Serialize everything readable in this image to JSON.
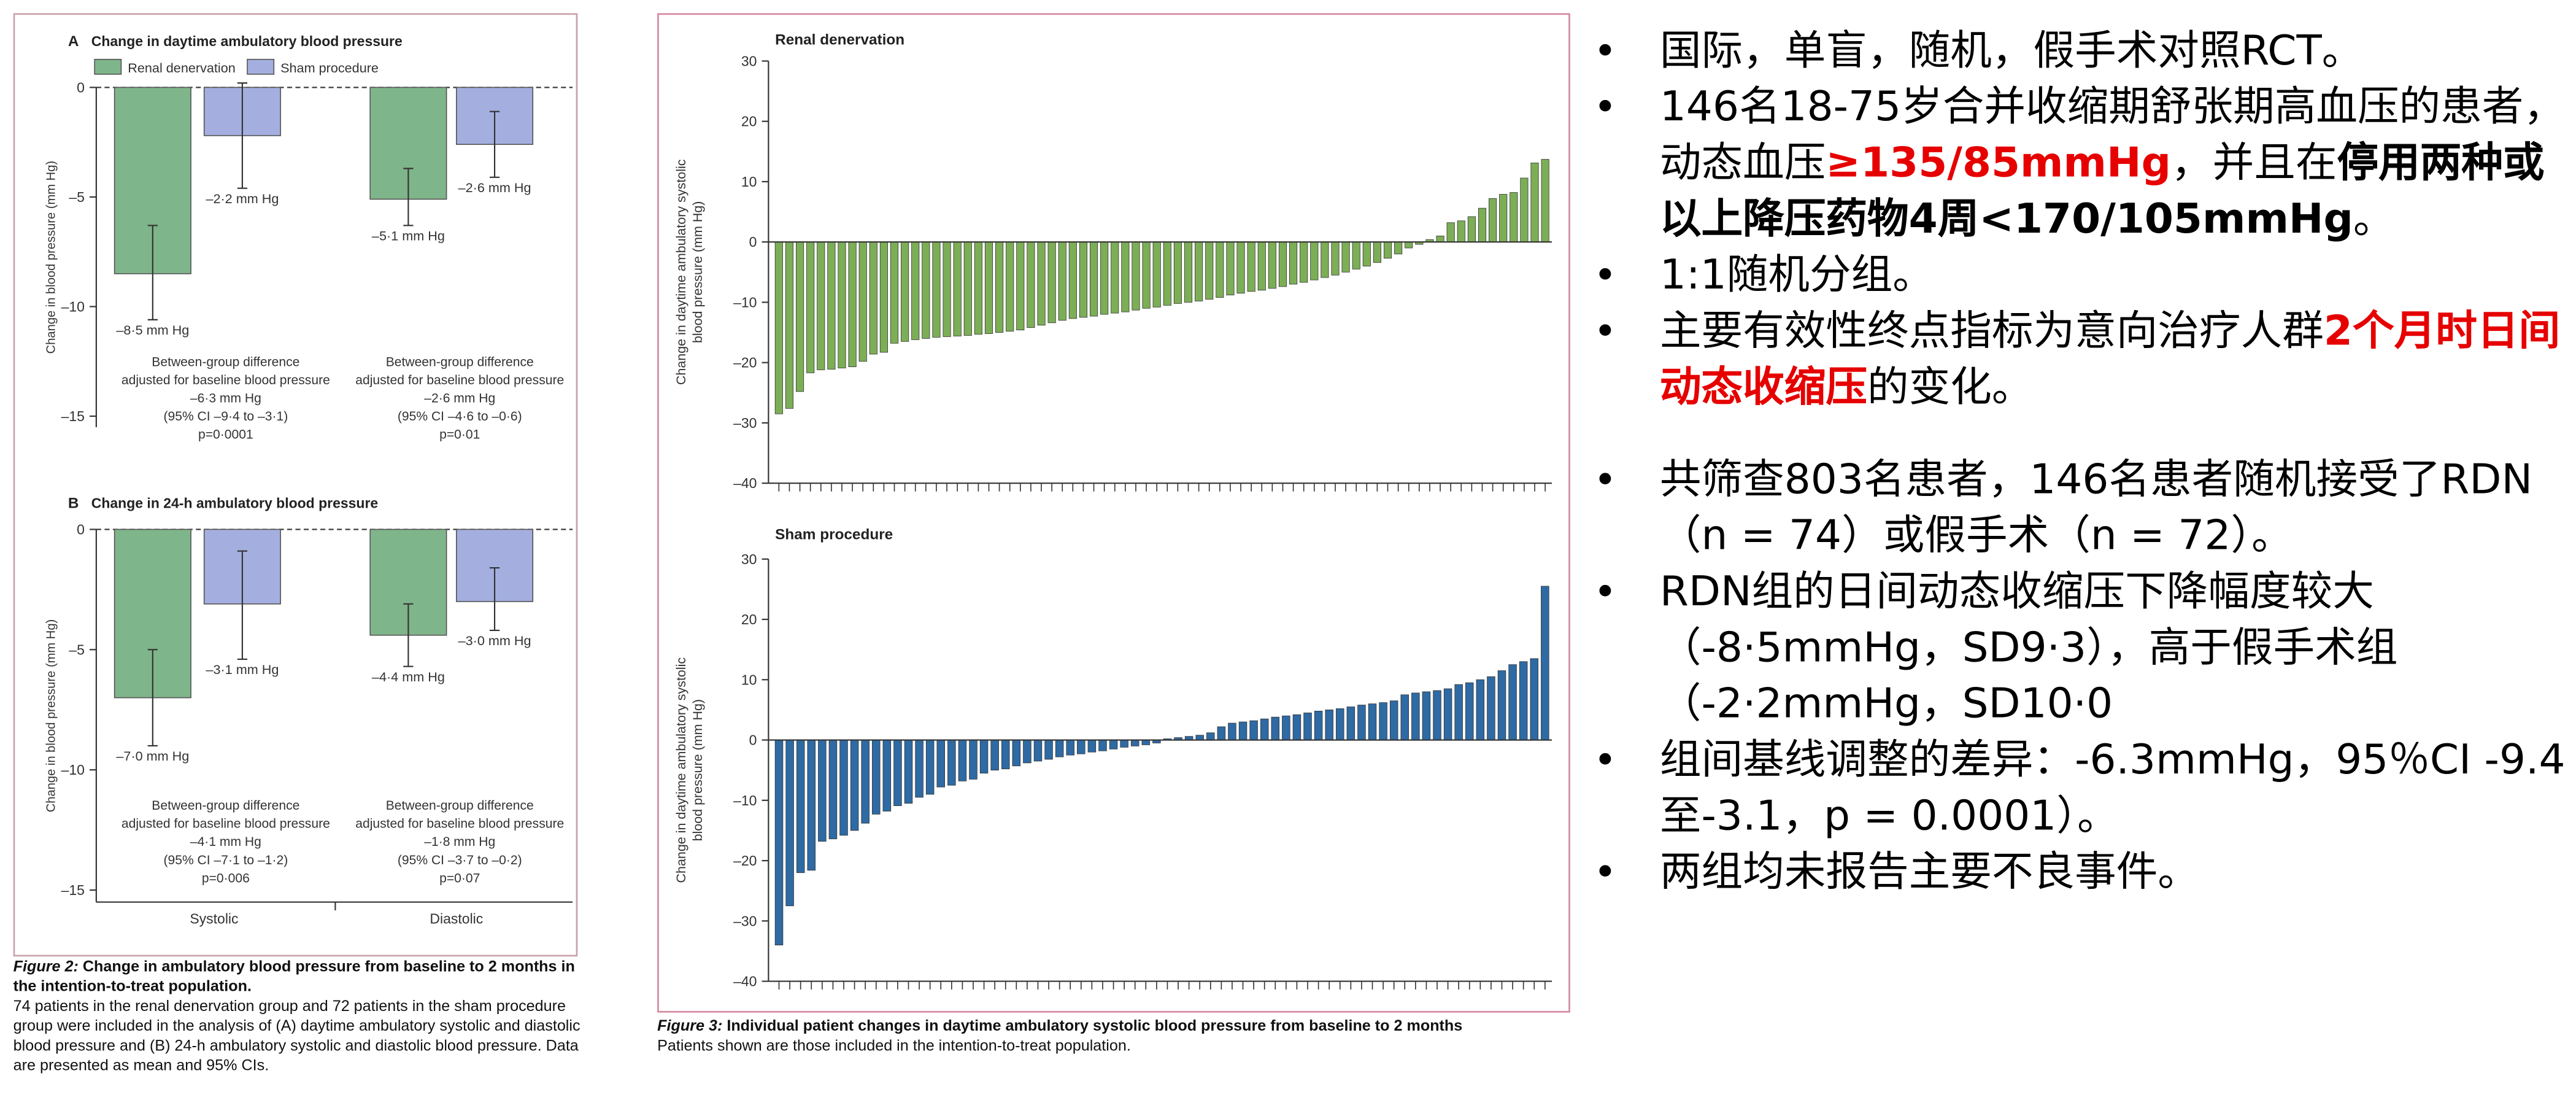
{
  "figure2": {
    "panel_a_label": "A",
    "panel_a_title": "Change in daytime ambulatory blood pressure",
    "panel_b_label": "B",
    "panel_b_title": "Change in 24-h ambulatory blood pressure",
    "legend": [
      "Renal denervation",
      "Sham procedure"
    ],
    "ylabel": "Change in blood pressure (mm Hg)",
    "ticks": [
      "0",
      "–5",
      "–10",
      "–15"
    ],
    "xcats": [
      "Systolic",
      "Diastolic"
    ],
    "caption_title_italic": "Figure 2:",
    "caption_title": " Change in ambulatory blood pressure from baseline to 2 months in the intention-to-treat population.",
    "caption_body": "74 patients in the renal denervation group and 72 patients in the sham procedure group were included in the analysis of (A) daytime ambulatory systolic and diastolic blood pressure and (B) 24-h ambulatory systolic and diastolic blood pressure. Data are presented as mean and 95% CIs."
  },
  "figure3": {
    "top_title": "Renal denervation",
    "bottom_title": "Sham procedure",
    "ylabel_1": "Change in daytime ambulatory systolic",
    "ylabel_2": "blood pressure (mm Hg)",
    "ticks": [
      "30",
      "20",
      "10",
      "0",
      "–10",
      "–20",
      "–30",
      "–40"
    ],
    "caption_title_italic": "Figure 3:",
    "caption_title": " Individual patient changes in daytime ambulatory systolic blood pressure from baseline to 2 months",
    "caption_body": "Patients shown are those included in the intention-to-treat population."
  },
  "bullets": {
    "b1": "国际，单盲，随机，假手术对照RCT。",
    "b2_a": "146名18-75岁合并收缩期舒张期高血压的患者，动态血压",
    "b2_red": "≥135/85mmHg",
    "b2_b": "，并且在",
    "b2_bold": "停用两种或以上降压药物4周<170/105mmHg",
    "b2_c": "。",
    "b3": "1:1随机分组。",
    "b4_a": "主要有效性终点指标为意向治疗人群",
    "b4_red": "2个月时日间动态收缩压",
    "b4_b": "的变化。",
    "b5": "共筛查803名患者，146名患者随机接受了RDN（n = 74）或假手术（n = 72）。",
    "b6_a": "RDN组的日间动态收缩压下降幅度较大（-8·5mmHg，SD9·3），",
    "b6_b": "高于假手术组（-2·2mmHg，SD10·0",
    "b7": "组间基线调整的差异：-6.3mmHg，95％CI -9.4至-3.1，p = 0.0001）。",
    "b8": "两组均未报告主要不良事件。"
  },
  "chart_data": [
    {
      "type": "bar",
      "title": "Change in daytime ambulatory blood pressure",
      "ylabel": "Change in blood pressure (mm Hg)",
      "ylim": [
        -17,
        0
      ],
      "categories": [
        "Systolic",
        "Diastolic"
      ],
      "series": [
        {
          "name": "Renal denervation",
          "values": [
            -8.5,
            -5.1
          ],
          "ci": [
            [
              -10.6,
              -6.3
            ],
            [
              -6.3,
              -3.7
            ]
          ],
          "labels": [
            "–8·5 mm Hg",
            "–5·1 mm Hg"
          ]
        },
        {
          "name": "Sham procedure",
          "values": [
            -2.2,
            -2.6
          ],
          "ci": [
            [
              -4.6,
              0.2
            ],
            [
              -4.1,
              -1.1
            ]
          ],
          "labels": [
            "–2·2 mm Hg",
            "–2·6 mm Hg"
          ]
        }
      ],
      "annotations": [
        [
          "Between-group difference",
          "adjusted for baseline blood pressure",
          "–6·3 mm Hg",
          "(95% CI –9·4 to –3·1)",
          "p=0·0001"
        ],
        [
          "Between-group difference",
          "adjusted for baseline blood pressure",
          "–2·6 mm Hg",
          "(95% CI –4·6 to –0·6)",
          "p=0·01"
        ]
      ]
    },
    {
      "type": "bar",
      "title": "Change in 24-h ambulatory blood pressure",
      "ylabel": "Change in blood pressure (mm Hg)",
      "ylim": [
        -17,
        0
      ],
      "categories": [
        "Systolic",
        "Diastolic"
      ],
      "series": [
        {
          "name": "Renal denervation",
          "values": [
            -7.0,
            -4.4
          ],
          "ci": [
            [
              -9.0,
              -5.0
            ],
            [
              -5.7,
              -3.1
            ]
          ],
          "labels": [
            "–7·0 mm Hg",
            "–4·4 mm Hg"
          ]
        },
        {
          "name": "Sham procedure",
          "values": [
            -3.1,
            -3.0
          ],
          "ci": [
            [
              -5.4,
              -0.9
            ],
            [
              -4.2,
              -1.6
            ]
          ],
          "labels": [
            "–3·1 mm Hg",
            "–3·0 mm Hg"
          ]
        }
      ],
      "annotations": [
        [
          "Between-group difference",
          "adjusted for baseline blood pressure",
          "–4·1 mm Hg",
          "(95% CI –7·1 to –1·2)",
          "p=0·006"
        ],
        [
          "Between-group difference",
          "adjusted for baseline blood pressure",
          "–1·8 mm Hg",
          "(95% CI –3·7 to –0·2)",
          "p=0·07"
        ]
      ]
    },
    {
      "type": "bar",
      "title": "Renal denervation",
      "ylabel": "Change in daytime ambulatory systolic blood pressure (mm Hg)",
      "ylim": [
        -40,
        30
      ],
      "color": "#7cae56",
      "values": [
        -28.5,
        -27.6,
        -24.8,
        -21.7,
        -21.2,
        -21.1,
        -20.9,
        -20.7,
        -19.8,
        -18.6,
        -18.3,
        -16.8,
        -16.5,
        -16.2,
        -16.0,
        -15.8,
        -15.7,
        -15.6,
        -15.5,
        -15.3,
        -15.2,
        -15.0,
        -14.8,
        -14.6,
        -14.2,
        -13.8,
        -13.4,
        -13.0,
        -12.7,
        -12.5,
        -12.3,
        -12.0,
        -11.8,
        -11.6,
        -11.3,
        -11.0,
        -10.8,
        -10.5,
        -10.2,
        -10.0,
        -9.8,
        -9.5,
        -9.2,
        -8.8,
        -8.5,
        -8.2,
        -8.0,
        -7.7,
        -7.4,
        -7.0,
        -6.7,
        -6.3,
        -5.9,
        -5.5,
        -5.0,
        -4.5,
        -4.0,
        -3.4,
        -2.7,
        -2.0,
        -1.0,
        -0.4,
        0.4,
        1.0,
        3.2,
        3.5,
        4.2,
        5.6,
        7.2,
        7.9,
        8.2,
        10.6,
        13.1,
        13.7
      ]
    },
    {
      "type": "bar",
      "title": "Sham procedure",
      "ylabel": "Change in daytime ambulatory systolic blood pressure (mm Hg)",
      "ylim": [
        -40,
        30
      ],
      "color": "#2e6aa3",
      "values": [
        -34.0,
        -27.5,
        -22.0,
        -21.6,
        -16.8,
        -16.4,
        -15.8,
        -15.0,
        -13.8,
        -12.3,
        -11.8,
        -10.9,
        -10.5,
        -9.5,
        -9.0,
        -7.8,
        -7.5,
        -6.8,
        -6.5,
        -5.5,
        -5.0,
        -4.8,
        -4.3,
        -3.8,
        -3.5,
        -3.2,
        -2.8,
        -2.5,
        -2.3,
        -2.0,
        -1.8,
        -1.5,
        -1.2,
        -1.0,
        -0.8,
        -0.5,
        0.2,
        0.4,
        0.6,
        0.8,
        1.2,
        2.2,
        2.8,
        3.0,
        3.2,
        3.5,
        3.8,
        4.0,
        4.2,
        4.5,
        4.8,
        5.0,
        5.2,
        5.5,
        5.8,
        6.0,
        6.2,
        6.5,
        7.5,
        7.8,
        8.0,
        8.2,
        8.5,
        9.2,
        9.5,
        10.0,
        10.5,
        11.5,
        12.5,
        13.0,
        13.5,
        25.5
      ]
    }
  ]
}
